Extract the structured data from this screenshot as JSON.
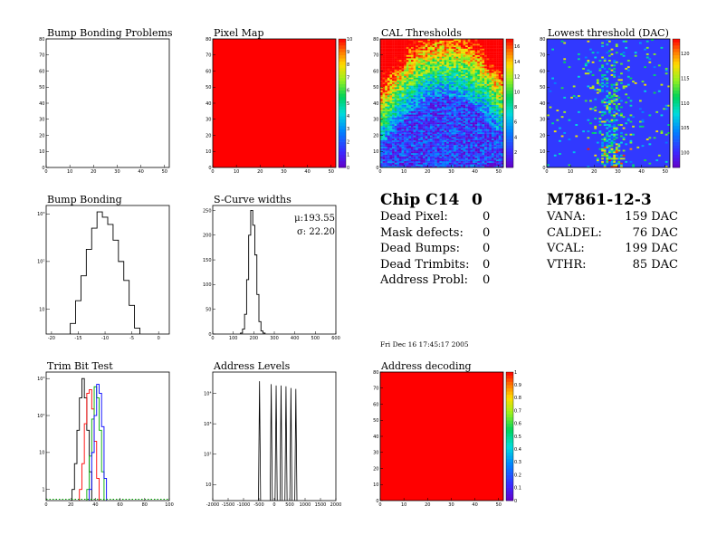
{
  "chart_data": [
    {
      "type": "heatmap",
      "title": "Bump Bonding Problems",
      "xlim": [
        0,
        52
      ],
      "ylim": [
        0,
        80
      ],
      "xticks": [
        0,
        10,
        20,
        30,
        40,
        50
      ],
      "yticks": [
        0,
        10,
        20,
        30,
        40,
        50,
        60,
        70,
        80
      ],
      "values": "empty",
      "colorbar": false
    },
    {
      "type": "heatmap",
      "title": "Pixel Map",
      "xlim": [
        0,
        52
      ],
      "ylim": [
        0,
        80
      ],
      "xticks": [
        0,
        10,
        20,
        30,
        40,
        50
      ],
      "yticks": [
        0,
        10,
        20,
        30,
        40,
        50,
        60,
        70,
        80
      ],
      "values": "uniform",
      "uniform_value": 10,
      "colorbar": true,
      "zlim": [
        0,
        10
      ],
      "colorbar_ticks": [
        0,
        1,
        2,
        3,
        4,
        5,
        6,
        7,
        8,
        9,
        10
      ]
    },
    {
      "type": "heatmap",
      "title": "CAL Thresholds",
      "xlim": [
        0,
        52
      ],
      "ylim": [
        0,
        80
      ],
      "xticks": [
        0,
        10,
        20,
        30,
        40,
        50
      ],
      "yticks": [
        0,
        10,
        20,
        30,
        40,
        50,
        60,
        70,
        80
      ],
      "values": "noisy",
      "pattern": "arch",
      "colorbar": true,
      "zlim": [
        0,
        17
      ],
      "colorbar_ticks": [
        2,
        4,
        6,
        8,
        10,
        12,
        14,
        16
      ]
    },
    {
      "type": "heatmap",
      "title": "Lowest threshold (DAC)",
      "xlim": [
        0,
        52
      ],
      "ylim": [
        0,
        80
      ],
      "xticks": [
        0,
        10,
        20,
        30,
        40,
        50
      ],
      "yticks": [
        0,
        10,
        20,
        30,
        40,
        50,
        60,
        70,
        80
      ],
      "values": "noisy",
      "pattern": "sparse",
      "colorbar": true,
      "zlim": [
        97,
        123
      ],
      "colorbar_ticks": [
        100,
        105,
        110,
        115,
        120
      ]
    },
    {
      "type": "histogram",
      "title": "Bump Bonding",
      "xlim": [
        -21,
        2
      ],
      "ylog": true,
      "ylim": [
        3,
        1500
      ],
      "xticks": [
        -20,
        -15,
        -10,
        -5,
        0
      ],
      "yticks": [
        10,
        100,
        1000
      ],
      "ytick_labels": [
        "10",
        "10²",
        "10³"
      ],
      "bin_width": 1,
      "bins": [
        {
          "x": -16,
          "y": 5
        },
        {
          "x": -15,
          "y": 15
        },
        {
          "x": -14,
          "y": 50
        },
        {
          "x": -13,
          "y": 180
        },
        {
          "x": -12,
          "y": 500
        },
        {
          "x": -11,
          "y": 1100
        },
        {
          "x": -10,
          "y": 850
        },
        {
          "x": -9,
          "y": 600
        },
        {
          "x": -8,
          "y": 280
        },
        {
          "x": -7,
          "y": 100
        },
        {
          "x": -6,
          "y": 40
        },
        {
          "x": -5,
          "y": 12
        },
        {
          "x": -4,
          "y": 4
        }
      ]
    },
    {
      "type": "histogram",
      "title": "S-Curve widths",
      "xlim": [
        0,
        600
      ],
      "ylim": [
        0,
        260
      ],
      "xticks": [
        0,
        100,
        200,
        300,
        400,
        500,
        600
      ],
      "yticks": [
        0,
        50,
        100,
        150,
        200,
        250
      ],
      "bin_width": 10,
      "bins": [
        {
          "x": 140,
          "y": 2
        },
        {
          "x": 150,
          "y": 10
        },
        {
          "x": 160,
          "y": 40
        },
        {
          "x": 170,
          "y": 110
        },
        {
          "x": 180,
          "y": 200
        },
        {
          "x": 190,
          "y": 250
        },
        {
          "x": 200,
          "y": 220
        },
        {
          "x": 210,
          "y": 160
        },
        {
          "x": 220,
          "y": 80
        },
        {
          "x": 230,
          "y": 25
        },
        {
          "x": 240,
          "y": 6
        },
        {
          "x": 250,
          "y": 2
        }
      ],
      "stats": {
        "mean_label": "μ:193.55",
        "sigma_label": "σ: 22.20"
      }
    },
    {
      "type": "histogram",
      "title": "Trim Bit Test",
      "xlim": [
        0,
        100
      ],
      "ylog": true,
      "ylim": [
        0.5,
        1500
      ],
      "xticks": [
        0,
        20,
        40,
        60,
        80,
        100
      ],
      "yticks": [
        1,
        10,
        100,
        1000
      ],
      "ytick_labels": [
        "1",
        "10",
        "10²",
        "10³"
      ],
      "series": [
        {
          "color": "#000000",
          "x": [
            22,
            24,
            26,
            28,
            30,
            32,
            34,
            36
          ],
          "y": [
            1,
            5,
            40,
            300,
            1000,
            300,
            40,
            3
          ]
        },
        {
          "color": "#ff0000",
          "x": [
            28,
            30,
            32,
            34,
            36,
            38,
            40,
            42
          ],
          "y": [
            1,
            5,
            60,
            400,
            500,
            150,
            20,
            2
          ]
        },
        {
          "color": "#00aa00",
          "x": [
            34,
            36,
            38,
            40,
            42,
            44,
            46
          ],
          "y": [
            1,
            8,
            80,
            600,
            300,
            40,
            3
          ]
        },
        {
          "color": "#0000ff",
          "x": [
            36,
            38,
            40,
            42,
            44,
            46,
            48
          ],
          "y": [
            1,
            10,
            100,
            700,
            400,
            50,
            2
          ]
        }
      ],
      "baseline_color": "#00aa00"
    },
    {
      "type": "histogram",
      "title": "Address Levels",
      "xlim": [
        -2000,
        2000
      ],
      "ylog": true,
      "ylim": [
        3,
        50000
      ],
      "xticks": [
        -2000,
        -1500,
        -1000,
        -500,
        0,
        500,
        1000,
        1500,
        2000
      ],
      "yticks": [
        10,
        100,
        1000,
        10000
      ],
      "ytick_labels": [
        "10",
        "10²",
        "10³",
        "10⁴"
      ],
      "spikes": [
        {
          "x": -480,
          "y": 25000
        },
        {
          "x": -100,
          "y": 20000
        },
        {
          "x": 60,
          "y": 18000
        },
        {
          "x": 220,
          "y": 18000
        },
        {
          "x": 380,
          "y": 17000
        },
        {
          "x": 540,
          "y": 15000
        },
        {
          "x": 700,
          "y": 14000
        }
      ]
    },
    {
      "type": "heatmap",
      "title": "Address decoding",
      "xlim": [
        0,
        52
      ],
      "ylim": [
        0,
        80
      ],
      "xticks": [
        0,
        10,
        20,
        30,
        40,
        50
      ],
      "yticks": [
        0,
        10,
        20,
        30,
        40,
        50,
        60,
        70,
        80
      ],
      "values": "uniform",
      "uniform_value": 1,
      "colorbar": true,
      "zlim": [
        0,
        1
      ],
      "colorbar_ticks": [
        0,
        0.1,
        0.2,
        0.3,
        0.4,
        0.5,
        0.6,
        0.7,
        0.8,
        0.9,
        1
      ]
    }
  ],
  "chip_summary": {
    "title": "Chip C14",
    "chip_value": "0",
    "rows": [
      {
        "label": "Dead Pixel:",
        "value": "0"
      },
      {
        "label": "Mask defects:",
        "value": "0"
      },
      {
        "label": "Dead Bumps:",
        "value": "0"
      },
      {
        "label": "Dead Trimbits:",
        "value": "0"
      },
      {
        "label": "Address Probl:",
        "value": "0"
      }
    ]
  },
  "module_summary": {
    "title": "M7861-12-3",
    "rows": [
      {
        "label": "VANA:",
        "value": "159 DAC"
      },
      {
        "label": "CALDEL:",
        "value": "76 DAC"
      },
      {
        "label": "VCAL:",
        "value": "199 DAC"
      },
      {
        "label": "VTHR:",
        "value": "85 DAC"
      }
    ]
  },
  "timestamp": "Fri Dec 16 17:45:17 2005"
}
